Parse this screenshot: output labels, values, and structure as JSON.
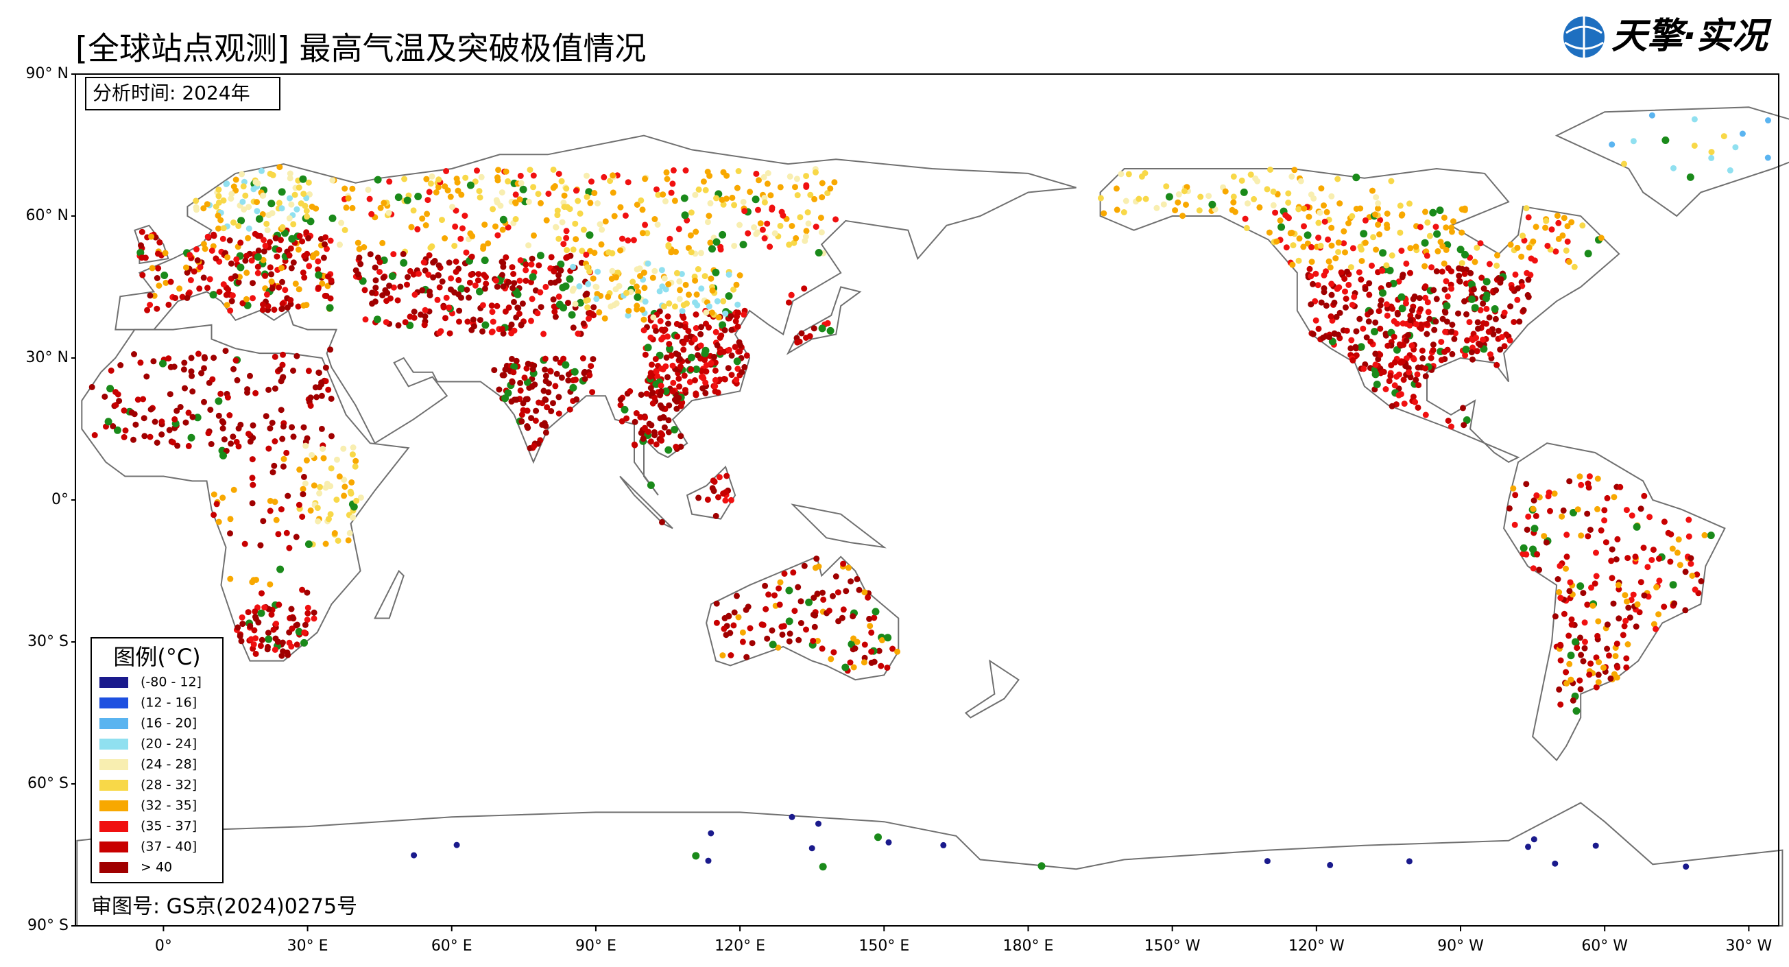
{
  "header": {
    "title": "[全球站点观测] 最高气温及突破极值情况",
    "logo": "天擎·实况"
  },
  "analysis_time": "分析时间: 2024年",
  "review_number": "审图号: GS京(2024)0275号",
  "axes": {
    "lat_ticks": [
      {
        "value": 90,
        "label": "90° N"
      },
      {
        "value": 60,
        "label": "60° N"
      },
      {
        "value": 30,
        "label": "30° N"
      },
      {
        "value": 0,
        "label": "0°"
      },
      {
        "value": -30,
        "label": "30° S"
      },
      {
        "value": -60,
        "label": "60° S"
      },
      {
        "value": -90,
        "label": "90° S"
      }
    ],
    "lon_ticks": [
      {
        "value": 0,
        "label": "0°"
      },
      {
        "value": 30,
        "label": "30° E"
      },
      {
        "value": 60,
        "label": "60° E"
      },
      {
        "value": 90,
        "label": "90° E"
      },
      {
        "value": 120,
        "label": "120° E"
      },
      {
        "value": 150,
        "label": "150° E"
      },
      {
        "value": 180,
        "label": "180° E"
      },
      {
        "value": 210,
        "label": "150° W"
      },
      {
        "value": 240,
        "label": "120° W"
      },
      {
        "value": 270,
        "label": "90° W"
      },
      {
        "value": 300,
        "label": "60° W"
      },
      {
        "value": 330,
        "label": "30° W"
      }
    ]
  },
  "legend": {
    "title": "图例(°C)",
    "items": [
      {
        "label": "(-80 - 12]",
        "color": "#1a1a8c"
      },
      {
        "label": "(12 - 16]",
        "color": "#1e50e0"
      },
      {
        "label": "(16 - 20]",
        "color": "#5ab4f0"
      },
      {
        "label": "(20 - 24]",
        "color": "#90e0f0"
      },
      {
        "label": "(24 - 28]",
        "color": "#f8eeb0"
      },
      {
        "label": "(28 - 32]",
        "color": "#f8d848"
      },
      {
        "label": "(32 - 35]",
        "color": "#f8a800"
      },
      {
        "label": "(35 - 37]",
        "color": "#f01010"
      },
      {
        "label": "(37 - 40]",
        "color": "#c80000"
      },
      {
        "label": "> 40",
        "color": "#a00000"
      }
    ]
  }
}
